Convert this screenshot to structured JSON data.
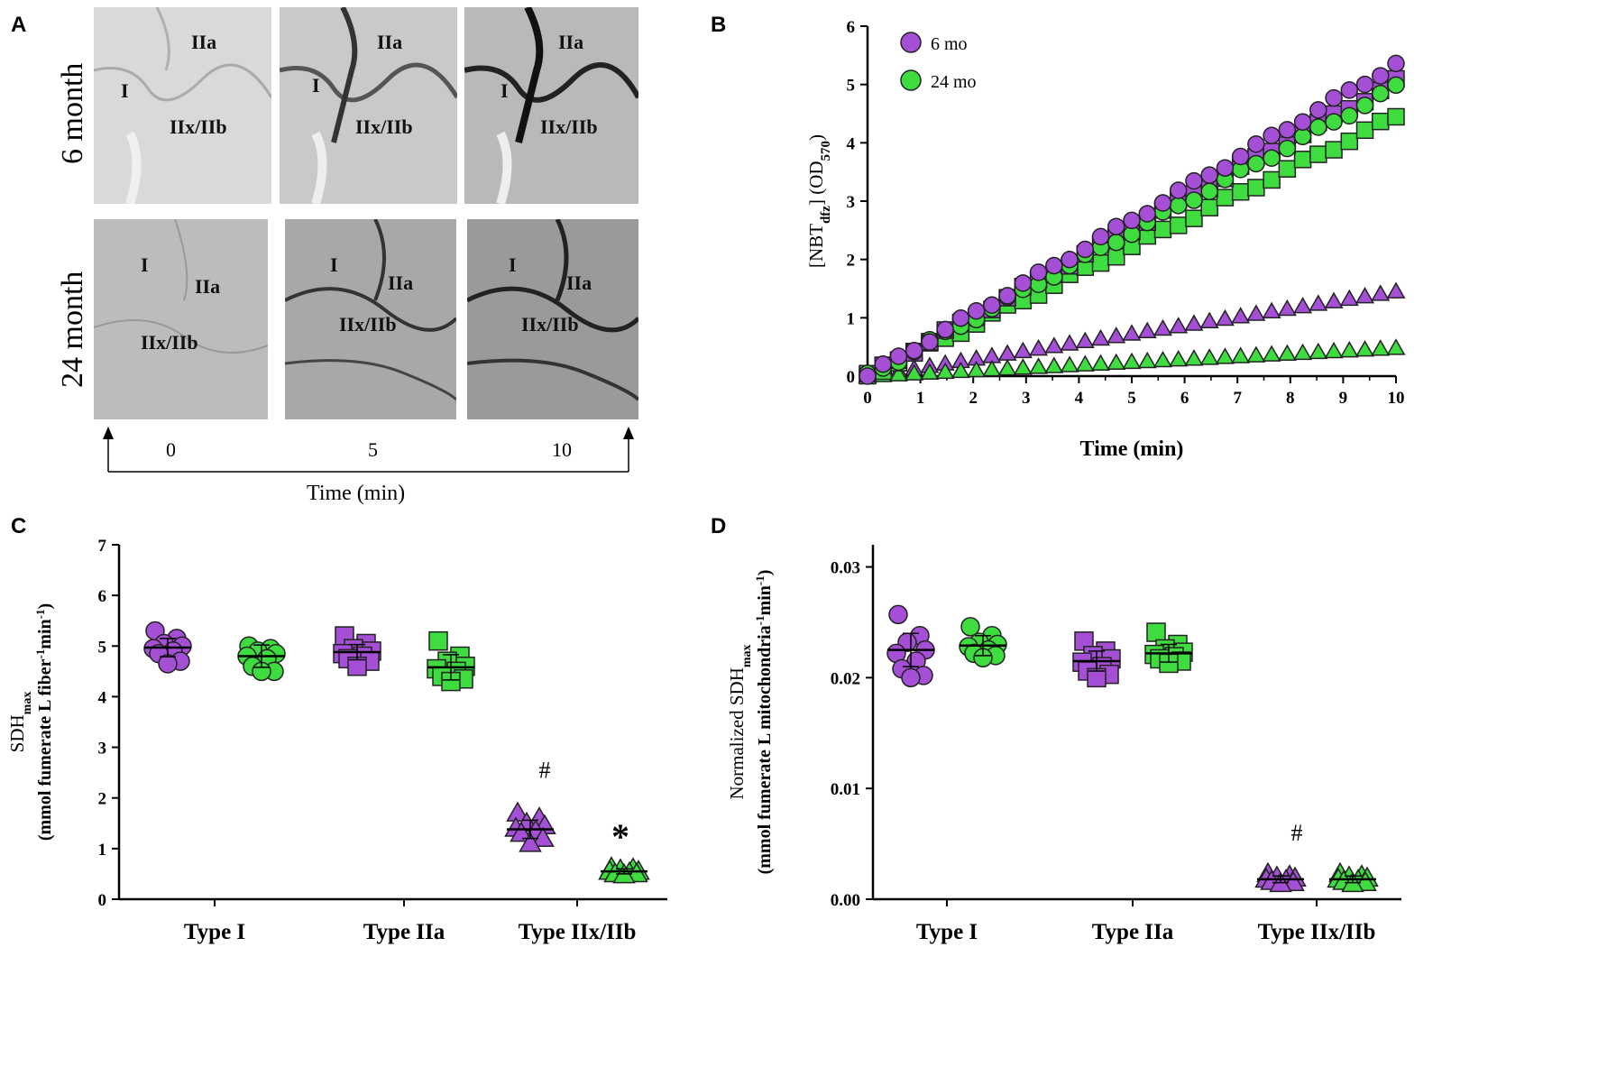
{
  "panel_letters": [
    "A",
    "B",
    "C",
    "D"
  ],
  "panel_a": {
    "row_labels": [
      "6 month",
      "24 month"
    ],
    "fiber_labels": {
      "type_i": "I",
      "type_iia": "IIa",
      "type_iixb": "IIx/IIb"
    },
    "time_ticks": [
      "0",
      "5",
      "10"
    ],
    "axis_label": "Time (min)"
  },
  "colors": {
    "six_mo": "#a54fd6",
    "twentyfour_mo": "#3fdc3f",
    "outline": "#222222"
  },
  "chart_data": [
    {
      "id": "B",
      "type": "scatter",
      "xlabel": "Time (min)",
      "ylabel_main": "[NBT",
      "ylabel_sub1": "dfz",
      "ylabel_mid": "] (OD",
      "ylabel_sub2": "570",
      "ylabel_end": ")",
      "xlim": [
        0,
        10
      ],
      "ylim": [
        0,
        6
      ],
      "xticks": [
        "0",
        "1",
        "2",
        "3",
        "4",
        "5",
        "6",
        "7",
        "8",
        "9",
        "10"
      ],
      "yticks": [
        "0",
        "1",
        "2",
        "3",
        "4",
        "5",
        "6"
      ],
      "legend": [
        "6 mo",
        "24 mo"
      ],
      "legend_position": "top-left",
      "series": [
        {
          "name": "6 mo Type I",
          "group": "six_mo",
          "marker": "circle",
          "x_end": 10,
          "y_end": 5.35
        },
        {
          "name": "6 mo Type IIa",
          "group": "six_mo",
          "marker": "square",
          "x_end": 10,
          "y_end": 5.05
        },
        {
          "name": "24 mo Type I",
          "group": "twentyfour_mo",
          "marker": "circle",
          "x_end": 10,
          "y_end": 4.95
        },
        {
          "name": "24 mo Type IIa",
          "group": "twentyfour_mo",
          "marker": "square",
          "x_end": 10,
          "y_end": 4.45
        },
        {
          "name": "6 mo Type IIx/IIb",
          "group": "six_mo",
          "marker": "triangle",
          "x_end": 10,
          "y_end": 1.45
        },
        {
          "name": "24 mo Type IIx/IIb",
          "group": "twentyfour_mo",
          "marker": "triangle",
          "x_end": 10,
          "y_end": 0.48
        }
      ]
    },
    {
      "id": "C",
      "type": "scatter",
      "ylabel_main": "SDH",
      "ylabel_sub": "max",
      "ylabel_units": "(mmol fumerate L fiber",
      "ylabel_units_mid": "min",
      "ylabel_units_end": ")",
      "sup": "-1",
      "ylim": [
        0,
        7
      ],
      "yticks": [
        "0",
        "1",
        "2",
        "3",
        "4",
        "5",
        "6",
        "7"
      ],
      "categories": [
        "Type I",
        "Type IIa",
        "Type IIx/IIb"
      ],
      "annotations": [
        "#",
        "*"
      ],
      "groups": [
        {
          "category": 0,
          "age": "six_mo",
          "marker": "circle",
          "mean": 4.97,
          "sd": 0.18,
          "points": [
            5.3,
            5.15,
            5.05,
            5.0,
            4.95,
            4.9,
            4.85,
            4.7,
            4.65
          ]
        },
        {
          "category": 0,
          "age": "twentyfour_mo",
          "marker": "circle",
          "mean": 4.8,
          "sd": 0.22,
          "points": [
            5.0,
            4.95,
            4.9,
            4.85,
            4.8,
            4.75,
            4.6,
            4.5,
            4.5
          ]
        },
        {
          "category": 1,
          "age": "six_mo",
          "marker": "square",
          "mean": 4.88,
          "sd": 0.15,
          "points": [
            5.2,
            5.05,
            4.95,
            4.9,
            4.85,
            4.8,
            4.75,
            4.7,
            4.6
          ]
        },
        {
          "category": 1,
          "age": "twentyfour_mo",
          "marker": "square",
          "mean": 4.58,
          "sd": 0.25,
          "points": [
            5.1,
            4.8,
            4.7,
            4.6,
            4.55,
            4.5,
            4.4,
            4.35,
            4.3
          ]
        },
        {
          "category": 2,
          "age": "six_mo",
          "marker": "triangle",
          "mean": 1.38,
          "sd": 0.18,
          "points": [
            1.7,
            1.6,
            1.5,
            1.45,
            1.4,
            1.35,
            1.3,
            1.2,
            1.1
          ]
        },
        {
          "category": 2,
          "age": "twentyfour_mo",
          "marker": "triangle",
          "mean": 0.55,
          "sd": 0.05,
          "points": [
            0.62,
            0.6,
            0.58,
            0.55,
            0.55,
            0.52,
            0.5,
            0.5,
            0.48
          ]
        }
      ]
    },
    {
      "id": "D",
      "type": "scatter",
      "ylabel_main": "Normalized SDH",
      "ylabel_sub": "max",
      "ylabel_units": "(mmol fumerate L mitochondria",
      "ylabel_units_mid": "min",
      "ylabel_units_end": ")",
      "sup": "-1",
      "ylim": [
        0,
        0.032
      ],
      "yticks": [
        "0.00",
        "0.01",
        "0.02",
        "0.03"
      ],
      "ytick_values": [
        0,
        0.01,
        0.02,
        0.03
      ],
      "categories": [
        "Type I",
        "Type IIa",
        "Type IIx/IIb"
      ],
      "annotations": [
        "#"
      ],
      "groups": [
        {
          "category": 0,
          "age": "six_mo",
          "marker": "circle",
          "mean": 0.0225,
          "sd": 0.0015,
          "points": [
            0.0257,
            0.0238,
            0.0232,
            0.0225,
            0.0222,
            0.0215,
            0.0208,
            0.0202,
            0.02
          ]
        },
        {
          "category": 0,
          "age": "twentyfour_mo",
          "marker": "circle",
          "mean": 0.0229,
          "sd": 0.0009,
          "points": [
            0.0246,
            0.0238,
            0.0232,
            0.023,
            0.0228,
            0.0225,
            0.0222,
            0.022,
            0.0218
          ]
        },
        {
          "category": 1,
          "age": "six_mo",
          "marker": "square",
          "mean": 0.0215,
          "sd": 0.0009,
          "points": [
            0.0233,
            0.0224,
            0.022,
            0.0217,
            0.0214,
            0.021,
            0.0206,
            0.0203,
            0.02
          ]
        },
        {
          "category": 1,
          "age": "twentyfour_mo",
          "marker": "square",
          "mean": 0.0222,
          "sd": 0.0008,
          "points": [
            0.0241,
            0.023,
            0.0226,
            0.0223,
            0.0221,
            0.0219,
            0.0217,
            0.0215,
            0.0213
          ]
        },
        {
          "category": 2,
          "age": "six_mo",
          "marker": "triangle",
          "mean": 0.0018,
          "sd": 0.0003,
          "points": [
            0.0023,
            0.0021,
            0.002,
            0.0019,
            0.0018,
            0.0017,
            0.0016,
            0.0015,
            0.0014
          ]
        },
        {
          "category": 2,
          "age": "twentyfour_mo",
          "marker": "triangle",
          "mean": 0.0018,
          "sd": 0.0003,
          "points": [
            0.0023,
            0.0021,
            0.002,
            0.0019,
            0.0018,
            0.0017,
            0.0016,
            0.0015,
            0.0014
          ]
        }
      ]
    }
  ]
}
